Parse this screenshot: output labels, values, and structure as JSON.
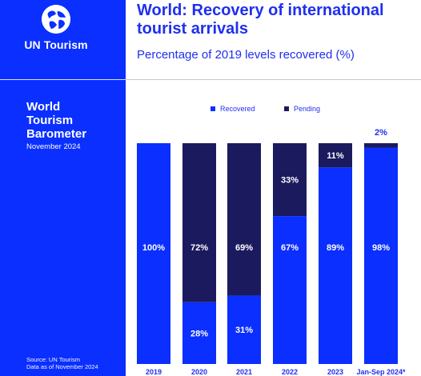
{
  "brand": {
    "name": "UN Tourism",
    "report_title": [
      "World",
      "Tourism",
      "Barometer"
    ],
    "edition": "November 2024",
    "source_lines": [
      "Source: UN Tourism",
      "Data as of November 2024"
    ],
    "colors": {
      "primary": "#0a2fff",
      "pending": "#1c1a5e",
      "title": "#1f2ff0"
    }
  },
  "chart_data": {
    "type": "bar",
    "stacked": true,
    "title": "World: Recovery of international tourist arrivals",
    "subtitle": "Percentage of 2019 levels recovered (%)",
    "categories": [
      "2019",
      "2020",
      "2021",
      "2022",
      "2023",
      "Jan-Sep 2024*"
    ],
    "series": [
      {
        "name": "Recovered",
        "color": "#0a2fff",
        "values": [
          100,
          28,
          31,
          67,
          89,
          98
        ],
        "labels": [
          "100%",
          "28%",
          "31%",
          "67%",
          "89%",
          "98%"
        ]
      },
      {
        "name": "Pending",
        "color": "#1c1a5e",
        "values": [
          0,
          72,
          69,
          33,
          11,
          2
        ],
        "labels": [
          "",
          "72%",
          "69%",
          "33%",
          "11%",
          "2%"
        ]
      }
    ],
    "ylim": [
      0,
      100
    ],
    "legend_position": "top-center",
    "grid": false
  }
}
